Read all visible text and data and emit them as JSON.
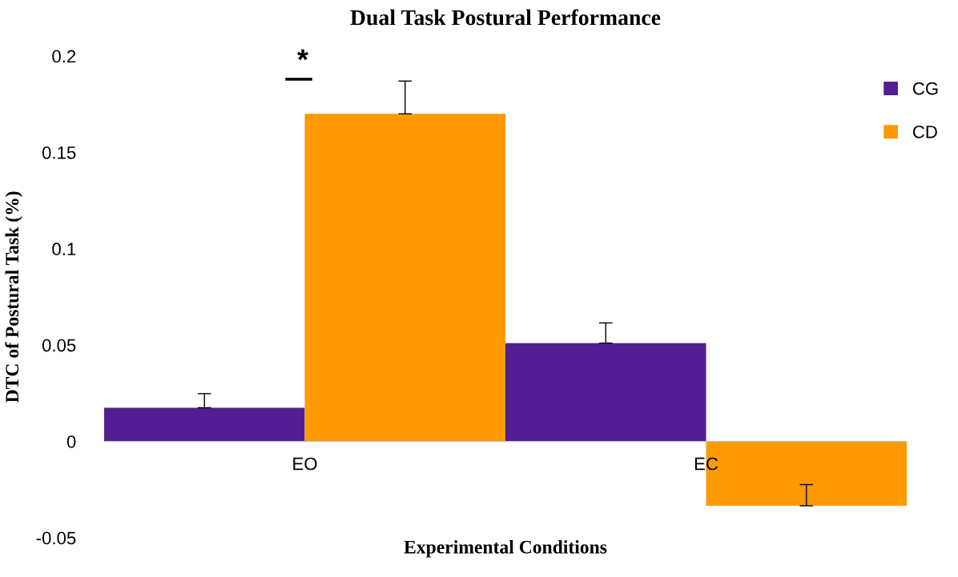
{
  "chart_data": {
    "type": "bar",
    "title": "Dual Task Postural Performance",
    "xlabel": "Experimental Conditions",
    "ylabel": "DTC of Postural Task (%)",
    "categories": [
      "EO",
      "EC"
    ],
    "series": [
      {
        "name": "CG",
        "color": "#531e93",
        "values": [
          0.0175,
          0.051
        ],
        "errors": [
          [
            0.0175,
            0.0248
          ],
          [
            0.051,
            0.0615
          ]
        ]
      },
      {
        "name": "CD",
        "color": "#ff9900",
        "values": [
          0.17,
          -0.0334
        ],
        "errors": [
          [
            0.17,
            0.187
          ],
          [
            -0.0334,
            -0.0224
          ]
        ]
      }
    ],
    "ylim": [
      -0.05,
      0.2
    ],
    "yticks": [
      -0.05,
      0,
      0.05,
      0.1,
      0.15,
      0.2
    ],
    "annotations": [
      "*"
    ],
    "grid": false,
    "legend": "top right"
  }
}
